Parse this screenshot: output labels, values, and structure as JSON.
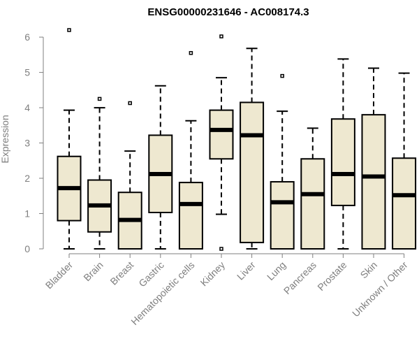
{
  "chart_data": {
    "type": "boxplot",
    "title": "ENSG00000231646 - AC008174.3",
    "ylabel": "Expression",
    "xlabel": "",
    "ylim": [
      0,
      6.2
    ],
    "yticks": [
      0,
      1,
      2,
      3,
      4,
      5,
      6
    ],
    "grid": false,
    "legend": "none",
    "colors": {
      "box_fill": "#EEE8D0",
      "box_stroke": "#000000",
      "axis": "#7f7f7f",
      "label": "#7f7f7f",
      "title": "#000000"
    },
    "categories": [
      "Bladder",
      "Brain",
      "Breast",
      "Gastric",
      "Hematopoietic cells",
      "Kidney",
      "Liver",
      "Lung",
      "Pancreas",
      "Prostate",
      "Skin",
      "Unknown / Other"
    ],
    "boxes": [
      {
        "category": "Bladder",
        "min": 0.0,
        "q1": 0.8,
        "median": 1.72,
        "q3": 2.62,
        "max": 3.93,
        "outliers": [
          6.2
        ]
      },
      {
        "category": "Brain",
        "min": 0.0,
        "q1": 0.48,
        "median": 1.23,
        "q3": 1.95,
        "max": 4.0,
        "outliers": [
          4.25
        ]
      },
      {
        "category": "Breast",
        "min": 0.0,
        "q1": 0.0,
        "median": 0.82,
        "q3": 1.6,
        "max": 2.77,
        "outliers": [
          4.13
        ]
      },
      {
        "category": "Gastric",
        "min": 0.0,
        "q1": 1.03,
        "median": 2.12,
        "q3": 3.22,
        "max": 4.62,
        "outliers": []
      },
      {
        "category": "Hematopoietic cells",
        "min": 0.0,
        "q1": 0.0,
        "median": 1.27,
        "q3": 1.88,
        "max": 3.63,
        "outliers": [
          5.55
        ]
      },
      {
        "category": "Kidney",
        "min": 0.98,
        "q1": 2.55,
        "median": 3.37,
        "q3": 3.93,
        "max": 4.85,
        "outliers": [
          6.02,
          0.0
        ]
      },
      {
        "category": "Liver",
        "min": 0.0,
        "q1": 0.18,
        "median": 3.22,
        "q3": 4.15,
        "max": 5.68,
        "outliers": []
      },
      {
        "category": "Lung",
        "min": 0.0,
        "q1": 0.0,
        "median": 1.32,
        "q3": 1.9,
        "max": 3.9,
        "outliers": [
          4.9
        ]
      },
      {
        "category": "Pancreas",
        "min": 0.0,
        "q1": 0.0,
        "median": 1.55,
        "q3": 2.55,
        "max": 3.42,
        "outliers": []
      },
      {
        "category": "Prostate",
        "min": 0.0,
        "q1": 1.23,
        "median": 2.12,
        "q3": 3.68,
        "max": 5.38,
        "outliers": []
      },
      {
        "category": "Skin",
        "min": 0.0,
        "q1": 0.0,
        "median": 2.05,
        "q3": 3.8,
        "max": 5.12,
        "outliers": []
      },
      {
        "category": "Unknown / Other",
        "min": 0.0,
        "q1": 0.0,
        "median": 1.52,
        "q3": 2.57,
        "max": 4.98,
        "outliers": []
      }
    ]
  }
}
